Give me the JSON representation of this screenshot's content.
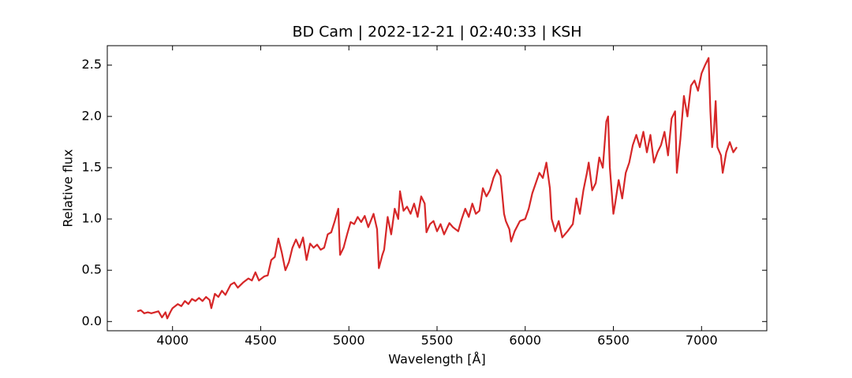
{
  "chart_data": {
    "type": "line",
    "title": "BD Cam | 2022-12-21 | 02:40:33 | KSH",
    "x_label": "Wavelength [Å]",
    "y_label": "Relative flux",
    "xlim": [
      3630,
      7370
    ],
    "ylim": [
      -0.09,
      2.69
    ],
    "xticks": [
      4000,
      4500,
      5000,
      5500,
      6000,
      6500,
      7000
    ],
    "yticks": [
      {
        "value": 0,
        "label": "0.0"
      },
      0.5,
      {
        "value": 1,
        "label": "1.0"
      },
      1.5,
      {
        "value": 2,
        "label": "2.0"
      },
      2.5
    ],
    "series": [
      {
        "color": "#d62728",
        "x": [
          3800,
          3820,
          3840,
          3860,
          3880,
          3900,
          3920,
          3940,
          3960,
          3970,
          3990,
          4000,
          4030,
          4050,
          4070,
          4090,
          4110,
          4130,
          4150,
          4170,
          4190,
          4210,
          4220,
          4240,
          4260,
          4280,
          4300,
          4330,
          4350,
          4370,
          4400,
          4430,
          4450,
          4470,
          4490,
          4520,
          4540,
          4560,
          4580,
          4600,
          4620,
          4640,
          4660,
          4680,
          4700,
          4720,
          4740,
          4760,
          4780,
          4800,
          4820,
          4840,
          4860,
          4880,
          4900,
          4920,
          4940,
          4950,
          4970,
          4990,
          5010,
          5030,
          5050,
          5070,
          5090,
          5110,
          5140,
          5160,
          5170,
          5190,
          5200,
          5220,
          5240,
          5260,
          5280,
          5290,
          5310,
          5330,
          5350,
          5370,
          5390,
          5410,
          5430,
          5440,
          5460,
          5480,
          5500,
          5520,
          5540,
          5570,
          5590,
          5620,
          5640,
          5660,
          5680,
          5700,
          5720,
          5740,
          5760,
          5780,
          5800,
          5820,
          5840,
          5860,
          5880,
          5890,
          5910,
          5920,
          5940,
          5970,
          6000,
          6020,
          6040,
          6060,
          6080,
          6100,
          6120,
          6140,
          6150,
          6170,
          6190,
          6210,
          6240,
          6270,
          6290,
          6310,
          6330,
          6350,
          6360,
          6380,
          6400,
          6420,
          6440,
          6460,
          6470,
          6480,
          6500,
          6510,
          6530,
          6550,
          6570,
          6590,
          6610,
          6630,
          6650,
          6670,
          6690,
          6710,
          6730,
          6750,
          6770,
          6790,
          6810,
          6830,
          6850,
          6860,
          6880,
          6900,
          6920,
          6940,
          6960,
          6980,
          7000,
          7020,
          7040,
          7050,
          7060,
          7070,
          7080,
          7090,
          7110,
          7120,
          7140,
          7160,
          7180,
          7200
        ],
        "values": [
          0.1,
          0.11,
          0.08,
          0.09,
          0.08,
          0.09,
          0.1,
          0.04,
          0.09,
          0.03,
          0.1,
          0.13,
          0.17,
          0.15,
          0.2,
          0.17,
          0.22,
          0.2,
          0.23,
          0.2,
          0.24,
          0.21,
          0.13,
          0.27,
          0.24,
          0.3,
          0.26,
          0.36,
          0.38,
          0.33,
          0.38,
          0.42,
          0.4,
          0.48,
          0.4,
          0.44,
          0.45,
          0.6,
          0.63,
          0.81,
          0.67,
          0.5,
          0.58,
          0.72,
          0.8,
          0.72,
          0.82,
          0.6,
          0.76,
          0.72,
          0.75,
          0.7,
          0.72,
          0.85,
          0.87,
          0.98,
          1.1,
          0.65,
          0.72,
          0.85,
          0.97,
          0.95,
          1.02,
          0.97,
          1.03,
          0.92,
          1.05,
          0.9,
          0.52,
          0.65,
          0.7,
          1.02,
          0.85,
          1.1,
          1.0,
          1.27,
          1.08,
          1.12,
          1.05,
          1.15,
          1.02,
          1.22,
          1.15,
          0.87,
          0.95,
          0.98,
          0.88,
          0.95,
          0.85,
          0.96,
          0.92,
          0.88,
          1.0,
          1.1,
          1.02,
          1.15,
          1.05,
          1.08,
          1.3,
          1.22,
          1.28,
          1.4,
          1.48,
          1.42,
          1.05,
          0.98,
          0.9,
          0.78,
          0.88,
          0.98,
          1.0,
          1.1,
          1.25,
          1.35,
          1.45,
          1.4,
          1.55,
          1.3,
          1.0,
          0.88,
          0.98,
          0.82,
          0.88,
          0.95,
          1.2,
          1.05,
          1.28,
          1.45,
          1.55,
          1.28,
          1.35,
          1.6,
          1.5,
          1.95,
          2.0,
          1.5,
          1.05,
          1.15,
          1.38,
          1.2,
          1.45,
          1.55,
          1.72,
          1.82,
          1.7,
          1.85,
          1.65,
          1.82,
          1.55,
          1.65,
          1.72,
          1.85,
          1.62,
          1.98,
          2.05,
          1.45,
          1.78,
          2.2,
          2.0,
          2.3,
          2.35,
          2.25,
          2.42,
          2.5,
          2.57,
          2.05,
          1.7,
          1.85,
          2.15,
          1.7,
          1.62,
          1.45,
          1.65,
          1.75,
          1.65,
          1.7
        ]
      }
    ]
  }
}
